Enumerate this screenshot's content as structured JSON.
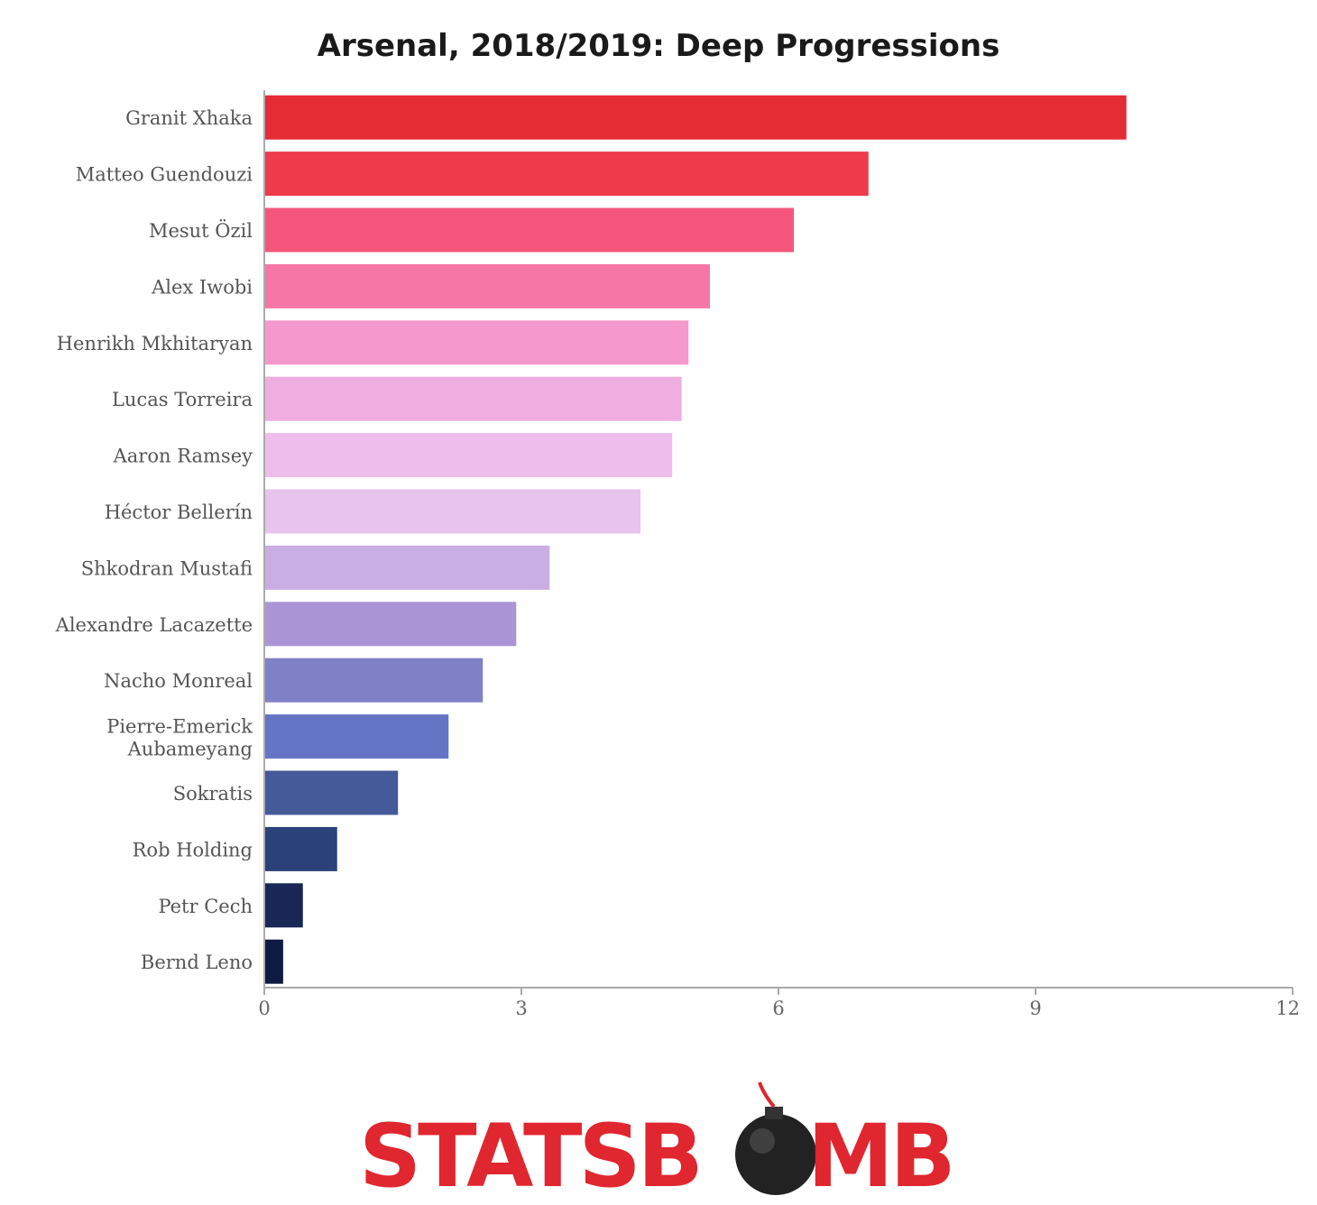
{
  "chart_data": {
    "type": "bar",
    "orientation": "horizontal",
    "title": "Arsenal, 2018/2019: Deep Progressions",
    "categories": [
      "Granit Xhaka",
      "Matteo Guendouzi",
      "Mesut Özil",
      "Alex Iwobi",
      "Henrikh Mkhitaryan",
      "Lucas Torreira",
      "Aaron Ramsey",
      "Héctor Bellerín",
      "Shkodran Mustafi",
      "Alexandre Lacazette",
      "Nacho Monreal",
      "Pierre-Emerick Aubameyang",
      "Sokratis",
      "Rob Holding",
      "Petr Cech",
      "Bernd Leno"
    ],
    "values": [
      10.06,
      7.05,
      6.18,
      5.2,
      4.95,
      4.87,
      4.76,
      4.39,
      3.33,
      2.94,
      2.55,
      2.15,
      1.56,
      0.85,
      0.45,
      0.22
    ],
    "colors": [
      "#e52b34",
      "#ef3a4c",
      "#f5577c",
      "#f677a6",
      "#f599cc",
      "#efaee0",
      "#efbdec",
      "#e7c3ee",
      "#c9aee4",
      "#ab94d6",
      "#7f80c5",
      "#6575c6",
      "#445a99",
      "#2a4278",
      "#182756",
      "#0f1a44"
    ],
    "xlim": [
      0,
      12
    ],
    "xticks": [
      0,
      3,
      6,
      9,
      12
    ],
    "xlabel": "",
    "ylabel": "",
    "grid": false,
    "legend": "none"
  },
  "logo": {
    "text": "STATSBOMB",
    "color": "#e0262f"
  }
}
